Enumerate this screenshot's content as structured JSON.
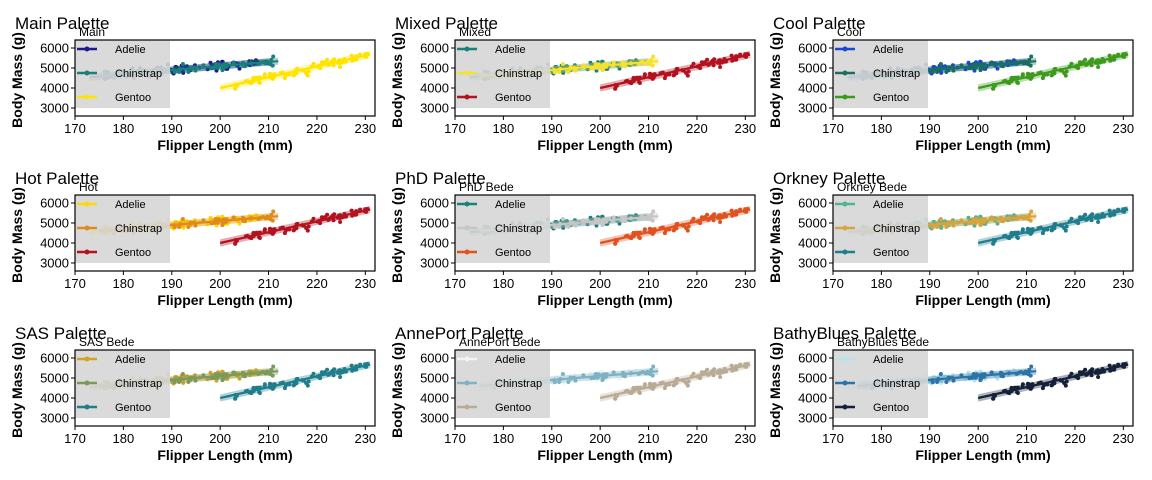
{
  "chart_data": [
    {
      "type": "scatter",
      "title": "Main Palette",
      "legend_title": "Main",
      "xlabel": "Flipper Length (mm)",
      "ylabel": "Body Mass (g)",
      "xlim": [
        170,
        232
      ],
      "ylim": [
        2600,
        6400
      ],
      "xticks": [
        170,
        180,
        190,
        200,
        210,
        220,
        230
      ],
      "yticks": [
        3000,
        4000,
        5000,
        6000
      ],
      "grid": false,
      "legend_position": "top-left",
      "series": [
        {
          "name": "Adelie",
          "color": "#1a1a8c"
        },
        {
          "name": "Chinstrap",
          "color": "#1b7f7a"
        },
        {
          "name": "Gentoo",
          "color": "#ffe400"
        }
      ]
    },
    {
      "type": "scatter",
      "title": "Mixed Palette",
      "legend_title": "Mixed",
      "xlabel": "Flipper Length (mm)",
      "ylabel": "Body Mass (g)",
      "xlim": [
        170,
        232
      ],
      "ylim": [
        2600,
        6400
      ],
      "xticks": [
        170,
        180,
        190,
        200,
        210,
        220,
        230
      ],
      "yticks": [
        3000,
        4000,
        5000,
        6000
      ],
      "grid": false,
      "legend_position": "top-left",
      "series": [
        {
          "name": "Adelie",
          "color": "#1b7f7a"
        },
        {
          "name": "Chinstrap",
          "color": "#f5e12f"
        },
        {
          "name": "Gentoo",
          "color": "#b3121f"
        }
      ]
    },
    {
      "type": "scatter",
      "title": "Cool Palette",
      "legend_title": "Cool",
      "xlabel": "Flipper Length (mm)",
      "ylabel": "Body Mass (g)",
      "xlim": [
        170,
        232
      ],
      "ylim": [
        2600,
        6400
      ],
      "xticks": [
        170,
        180,
        190,
        200,
        210,
        220,
        230
      ],
      "yticks": [
        3000,
        4000,
        5000,
        6000
      ],
      "grid": false,
      "legend_position": "top-left",
      "series": [
        {
          "name": "Adelie",
          "color": "#1947d1"
        },
        {
          "name": "Chinstrap",
          "color": "#1b6e61"
        },
        {
          "name": "Gentoo",
          "color": "#3d9a1c"
        }
      ]
    },
    {
      "type": "scatter",
      "title": "Hot Palette",
      "legend_title": "Hot",
      "xlabel": "Flipper Length (mm)",
      "ylabel": "Body Mass (g)",
      "xlim": [
        170,
        232
      ],
      "ylim": [
        2600,
        6400
      ],
      "xticks": [
        170,
        180,
        190,
        200,
        210,
        220,
        230
      ],
      "yticks": [
        3000,
        4000,
        5000,
        6000
      ],
      "grid": false,
      "legend_position": "top-left",
      "series": [
        {
          "name": "Adelie",
          "color": "#ffd900"
        },
        {
          "name": "Chinstrap",
          "color": "#e08a1c"
        },
        {
          "name": "Gentoo",
          "color": "#b3121f"
        }
      ]
    },
    {
      "type": "scatter",
      "title": "PhD Palette",
      "legend_title": "PhD Bede",
      "xlabel": "Flipper Length (mm)",
      "ylabel": "Body Mass (g)",
      "xlim": [
        170,
        232
      ],
      "ylim": [
        2600,
        6400
      ],
      "xticks": [
        170,
        180,
        190,
        200,
        210,
        220,
        230
      ],
      "yticks": [
        3000,
        4000,
        5000,
        6000
      ],
      "grid": false,
      "legend_position": "top-left",
      "series": [
        {
          "name": "Adelie",
          "color": "#1b7f7a"
        },
        {
          "name": "Chinstrap",
          "color": "#c6c6c6"
        },
        {
          "name": "Gentoo",
          "color": "#e0521f"
        }
      ]
    },
    {
      "type": "scatter",
      "title": "Orkney Palette",
      "legend_title": "Orkney Bede",
      "xlabel": "Flipper Length (mm)",
      "ylabel": "Body Mass (g)",
      "xlim": [
        170,
        232
      ],
      "ylim": [
        2600,
        6400
      ],
      "xticks": [
        170,
        180,
        190,
        200,
        210,
        220,
        230
      ],
      "yticks": [
        3000,
        4000,
        5000,
        6000
      ],
      "grid": false,
      "legend_position": "top-left",
      "series": [
        {
          "name": "Adelie",
          "color": "#4fb394"
        },
        {
          "name": "Chinstrap",
          "color": "#d8a43c"
        },
        {
          "name": "Gentoo",
          "color": "#1f7d8c"
        }
      ]
    },
    {
      "type": "scatter",
      "title": "SAS Palette",
      "legend_title": "SAS Bede",
      "xlabel": "Flipper Length (mm)",
      "ylabel": "Body Mass (g)",
      "xlim": [
        170,
        232
      ],
      "ylim": [
        2600,
        6400
      ],
      "xticks": [
        170,
        180,
        190,
        200,
        210,
        220,
        230
      ],
      "yticks": [
        3000,
        4000,
        5000,
        6000
      ],
      "grid": false,
      "legend_position": "top-left",
      "series": [
        {
          "name": "Adelie",
          "color": "#d3a225"
        },
        {
          "name": "Chinstrap",
          "color": "#7a9a5c"
        },
        {
          "name": "Gentoo",
          "color": "#1f7d8c"
        }
      ]
    },
    {
      "type": "scatter",
      "title": "AnnePort Palette",
      "legend_title": "AnnePort Bede",
      "xlabel": "Flipper Length (mm)",
      "ylabel": "Body Mass (g)",
      "xlim": [
        170,
        232
      ],
      "ylim": [
        2600,
        6400
      ],
      "xticks": [
        170,
        180,
        190,
        200,
        210,
        220,
        230
      ],
      "yticks": [
        3000,
        4000,
        5000,
        6000
      ],
      "grid": false,
      "legend_position": "top-left",
      "series": [
        {
          "name": "Adelie",
          "color": "#eef4f7"
        },
        {
          "name": "Chinstrap",
          "color": "#7fb2c2"
        },
        {
          "name": "Gentoo",
          "color": "#b9ab95"
        }
      ]
    },
    {
      "type": "scatter",
      "title": "BathyBlues Palette",
      "legend_title": "BathyBlues Bede",
      "xlabel": "Flipper Length (mm)",
      "ylabel": "Body Mass (g)",
      "xlim": [
        170,
        232
      ],
      "ylim": [
        2600,
        6400
      ],
      "xticks": [
        170,
        180,
        190,
        200,
        210,
        220,
        230
      ],
      "yticks": [
        3000,
        4000,
        5000,
        6000
      ],
      "grid": false,
      "legend_position": "top-left",
      "series": [
        {
          "name": "Adelie",
          "color": "#b4e4ea"
        },
        {
          "name": "Chinstrap",
          "color": "#2e73a8"
        },
        {
          "name": "Gentoo",
          "color": "#15213a"
        }
      ]
    }
  ]
}
